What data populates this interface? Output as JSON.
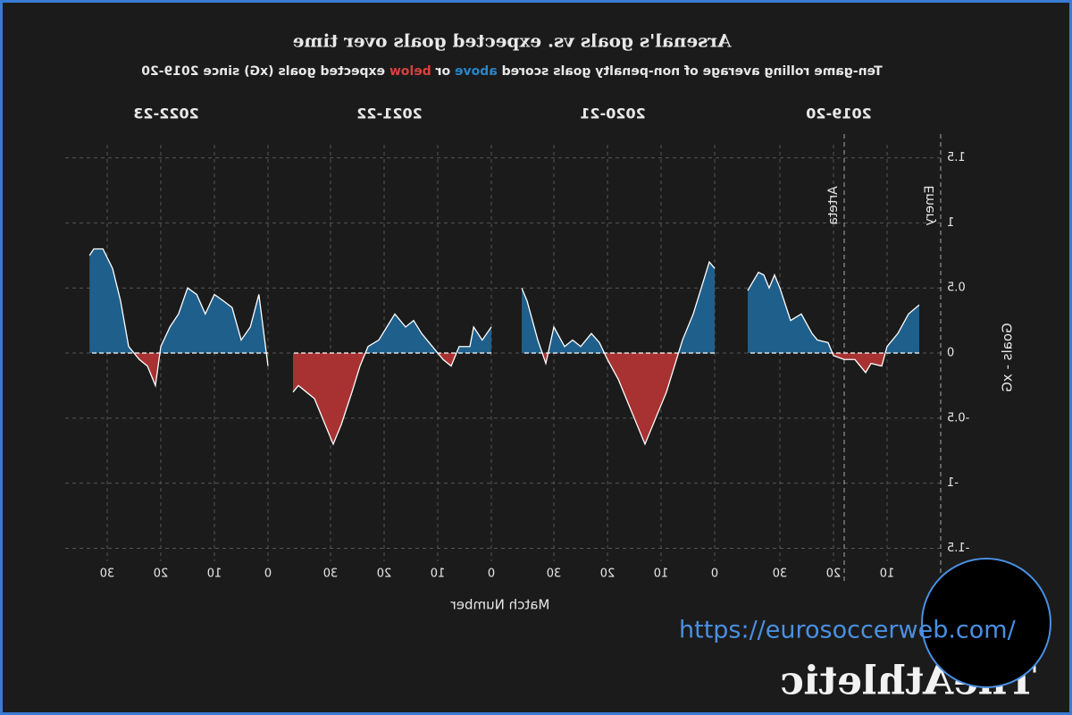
{
  "chart_data": {
    "type": "area",
    "title": "Arsenal's goals vs. expected goals over time",
    "subtitle": [
      "Ten-game rolling average of non-penalty goals scored ",
      "above",
      " or ",
      "below",
      " expected goals (xG) since 2019-20"
    ],
    "x_label": "Match Number",
    "y_label": "Goals - xG",
    "ylim": [
      -1.6,
      1.6
    ],
    "yticks": [
      -1.5,
      -1.0,
      -0.5,
      0.0,
      0.5,
      1.0,
      1.5
    ],
    "colors": {
      "above": "#1f5f8b",
      "below": "#a83232",
      "above_text": "#2a86c8",
      "below_text": "#d8423e"
    },
    "grid": true,
    "panels": [
      {
        "title": "2019-20",
        "xlim": [
          0,
          38
        ],
        "xticks": [
          10,
          20,
          30
        ],
        "x": [
          4,
          6,
          8,
          10,
          11,
          13,
          14,
          16,
          18,
          20,
          21,
          23,
          24,
          26,
          28,
          30,
          31,
          32,
          33,
          34,
          36
        ],
        "values": [
          0.37,
          0.3,
          0.15,
          0.05,
          -0.1,
          -0.08,
          -0.15,
          -0.05,
          -0.05,
          -0.02,
          0.08,
          0.1,
          0.15,
          0.3,
          0.25,
          0.5,
          0.6,
          0.5,
          0.6,
          0.62,
          0.48
        ],
        "annotations": [
          {
            "x": 0,
            "label": "Emery"
          },
          {
            "x": 18,
            "label": "Arteta"
          }
        ]
      },
      {
        "title": "2020-21",
        "xlim": [
          0,
          38
        ],
        "xticks": [
          0,
          10,
          20,
          30
        ],
        "x": [
          0,
          1,
          2.5,
          4,
          6,
          7.5,
          9,
          11,
          13,
          15,
          16.5,
          18,
          20,
          21.5,
          23,
          25,
          26.5,
          28,
          30,
          31.5,
          33,
          35,
          36
        ],
        "values": [
          0.65,
          0.7,
          0.5,
          0.3,
          0.1,
          -0.1,
          -0.3,
          -0.5,
          -0.7,
          -0.5,
          -0.35,
          -0.2,
          -0.05,
          0.08,
          0.15,
          0.05,
          0.1,
          0.05,
          0.2,
          -0.08,
          0.1,
          0.4,
          0.5
        ]
      },
      {
        "title": "2021-22",
        "xlim": [
          0,
          38
        ],
        "xticks": [
          0,
          10,
          20,
          30
        ],
        "x": [
          0,
          1.7,
          3.3,
          4,
          6,
          7.5,
          9,
          11,
          13,
          14.5,
          16,
          18,
          19.5,
          21,
          23,
          24.5,
          26,
          28,
          29.5,
          31,
          33,
          34.5,
          36,
          37
        ],
        "values": [
          0.2,
          0.1,
          0.2,
          0.05,
          0.05,
          -0.1,
          -0.05,
          0.05,
          0.15,
          0.25,
          0.2,
          0.3,
          0.2,
          0.1,
          0.05,
          -0.1,
          -0.3,
          -0.55,
          -0.7,
          -0.55,
          -0.35,
          -0.3,
          -0.25,
          -0.3
        ]
      },
      {
        "title": "2022-23",
        "xlim": [
          0,
          38
        ],
        "xticks": [
          0,
          10,
          20,
          30
        ],
        "x": [
          0,
          1.7,
          3.3,
          5,
          6.7,
          8.3,
          10,
          11.7,
          13.3,
          15,
          16.7,
          18.3,
          20,
          21,
          22.5,
          24,
          26,
          27.5,
          29,
          30.8,
          32.5,
          33.3
        ],
        "values": [
          -0.1,
          0.45,
          0.2,
          0.1,
          0.35,
          0.4,
          0.45,
          0.3,
          0.45,
          0.5,
          0.3,
          0.2,
          0.05,
          -0.25,
          -0.1,
          -0.05,
          0.05,
          0.4,
          0.65,
          0.8,
          0.8,
          0.75
        ]
      }
    ]
  },
  "brand": "TheAthletic",
  "watermark": "https://eurosoccerweb.com/"
}
